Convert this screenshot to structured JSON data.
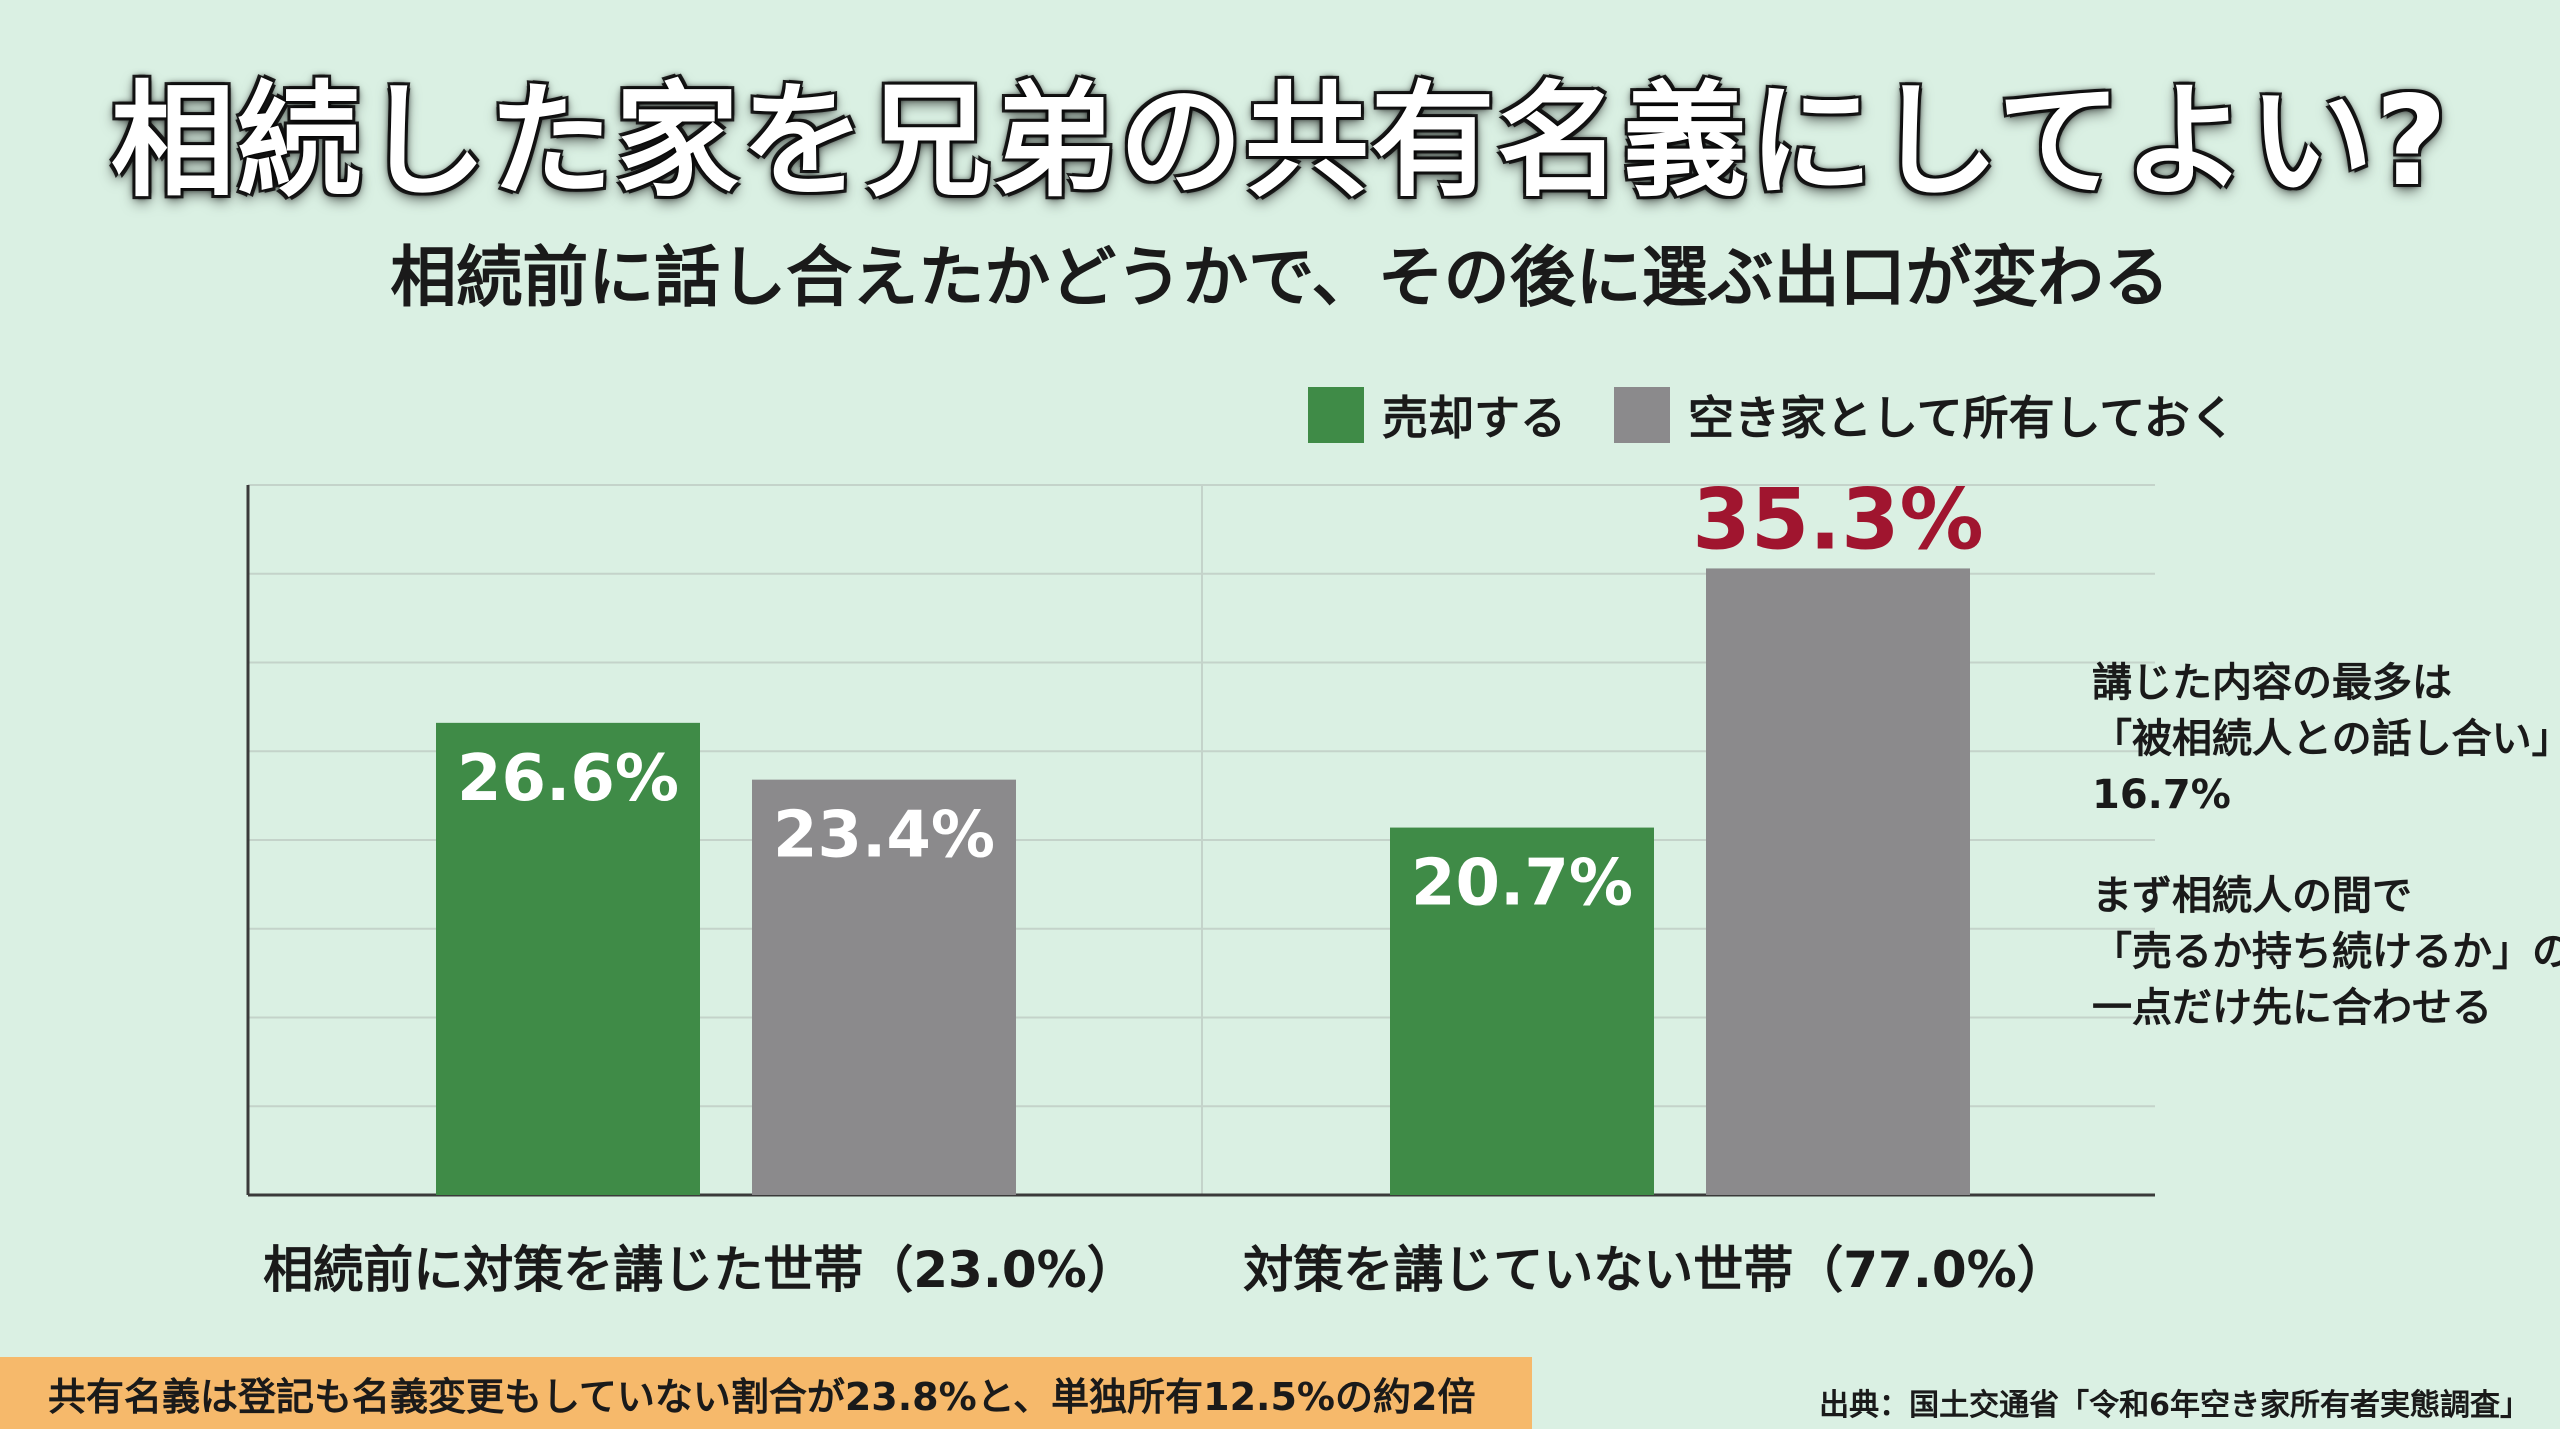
{
  "header": {
    "title": "相続した家を兄弟の共有名義にしてよい?",
    "subtitle": "相続前に話し合えたかどうかで、その後に選ぶ出口が変わる"
  },
  "chart_data": {
    "type": "bar",
    "categories": [
      "相続前に対策を講じた世帯（23.0%）",
      "対策を講じていない世帯（77.0%）"
    ],
    "series": [
      {
        "name": "売却する",
        "values": [
          26.6,
          20.7
        ],
        "color": "#3f8b47"
      },
      {
        "name": "空き家として所有しておく",
        "values": [
          23.4,
          35.3
        ],
        "color": "#8b8a8c"
      }
    ],
    "value_labels": [
      [
        "26.6%",
        "20.7%"
      ],
      [
        "23.4%",
        "35.3%"
      ]
    ],
    "highlight": {
      "series": 1,
      "index": 1,
      "color": "#a0152f"
    },
    "ylim": [
      0,
      40
    ],
    "grid": true,
    "legend_position": "top-right"
  },
  "notes": {
    "note1": [
      "講じた内容の最多は",
      "「被相続人との話し合い」",
      "16.7%"
    ],
    "note2": [
      "まず相続人の間で",
      "「売るか持ち続けるか」の",
      "一点だけ先に合わせる"
    ]
  },
  "footer": {
    "banner": "共有名義は登記も名義変更もしていない割合が23.8%と、単独所有12.5%の約2倍",
    "source": "出典：国土交通省「令和6年空き家所有者実態調査」"
  },
  "colors": {
    "background": "#daf0e3",
    "green": "#3f8b47",
    "gray": "#8b8a8c",
    "highlight": "#a0152f",
    "banner": "#f6b96b"
  }
}
